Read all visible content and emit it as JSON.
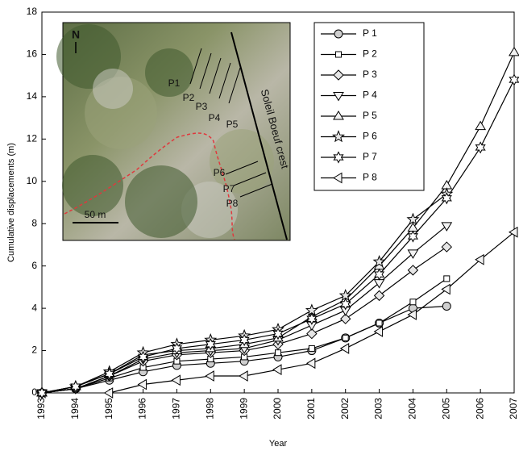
{
  "chart_data": {
    "type": "line",
    "x": [
      1993,
      1994,
      1995,
      1996,
      1997,
      1998,
      1999,
      2000,
      2001,
      2002,
      2003,
      2004,
      2005,
      2006,
      2007
    ],
    "xlim": [
      1993,
      2007
    ],
    "xticks": [
      1993,
      1994,
      1995,
      1996,
      1997,
      1998,
      1999,
      2000,
      2001,
      2002,
      2003,
      2004,
      2005,
      2006,
      2007
    ],
    "ylim": [
      0,
      18
    ],
    "yticks": [
      0,
      2,
      4,
      6,
      8,
      10,
      12,
      14,
      16,
      18
    ],
    "x_label": "Year",
    "y_label": "Cumulative displacements (m)",
    "series": [
      {
        "name": "P 1",
        "color": "#000000",
        "fill": "#cfcfcf",
        "marker": "circle",
        "values": [
          0,
          0.2,
          0.6,
          1.0,
          1.3,
          1.4,
          1.5,
          1.7,
          2.0,
          2.6,
          3.3,
          4.0,
          4.1,
          null,
          null
        ]
      },
      {
        "name": "P 2",
        "color": "#000000",
        "fill": "#ffffff",
        "marker": "square",
        "values": [
          0,
          0.2,
          0.7,
          1.2,
          1.5,
          1.6,
          1.7,
          1.9,
          2.1,
          2.6,
          3.3,
          4.3,
          5.4,
          null,
          null
        ]
      },
      {
        "name": "P 3",
        "color": "#000000",
        "fill": "#e6e6e6",
        "marker": "diamond",
        "values": [
          0,
          0.2,
          0.8,
          1.5,
          1.8,
          1.9,
          2.0,
          2.3,
          2.8,
          3.5,
          4.6,
          5.8,
          6.9,
          null,
          null
        ]
      },
      {
        "name": "P 4",
        "color": "#000000",
        "fill": "#f2f2f2",
        "marker": "triangle-down",
        "values": [
          0,
          0.2,
          0.8,
          1.6,
          1.9,
          2.0,
          2.1,
          2.5,
          3.2,
          3.9,
          5.2,
          6.6,
          7.9,
          null,
          null
        ]
      },
      {
        "name": "P 5",
        "color": "#000000",
        "fill": "#f2f2f2",
        "marker": "triangle-up",
        "values": [
          0,
          0.3,
          0.9,
          1.8,
          2.0,
          2.1,
          2.3,
          2.6,
          3.6,
          4.4,
          6.0,
          7.8,
          9.8,
          12.6,
          16.1
        ]
      },
      {
        "name": "P 6",
        "color": "#000000",
        "fill": "#e6e6e6",
        "marker": "star",
        "values": [
          0,
          0.3,
          1.0,
          1.9,
          2.3,
          2.5,
          2.7,
          3.0,
          3.9,
          4.6,
          6.2,
          8.2,
          9.4,
          null,
          null
        ]
      },
      {
        "name": "P 7",
        "color": "#000000",
        "fill": "#ffffff",
        "marker": "hexagram",
        "values": [
          0,
          0.3,
          0.9,
          1.7,
          2.1,
          2.3,
          2.5,
          2.8,
          3.5,
          4.2,
          5.6,
          7.4,
          9.2,
          11.6,
          14.8
        ]
      },
      {
        "name": "P 8",
        "color": "#000000",
        "fill": "#f2f2f2",
        "marker": "triangle-left",
        "values": [
          null,
          null,
          0,
          0.4,
          0.6,
          0.8,
          0.8,
          1.1,
          1.4,
          2.1,
          2.9,
          3.7,
          4.9,
          6.3,
          7.6
        ]
      }
    ],
    "inset_labels": [
      "N",
      "P1",
      "P2",
      "P3",
      "P4",
      "P5",
      "P6",
      "P7",
      "P8",
      "Soleil Boeuf crest",
      "50 m"
    ]
  }
}
